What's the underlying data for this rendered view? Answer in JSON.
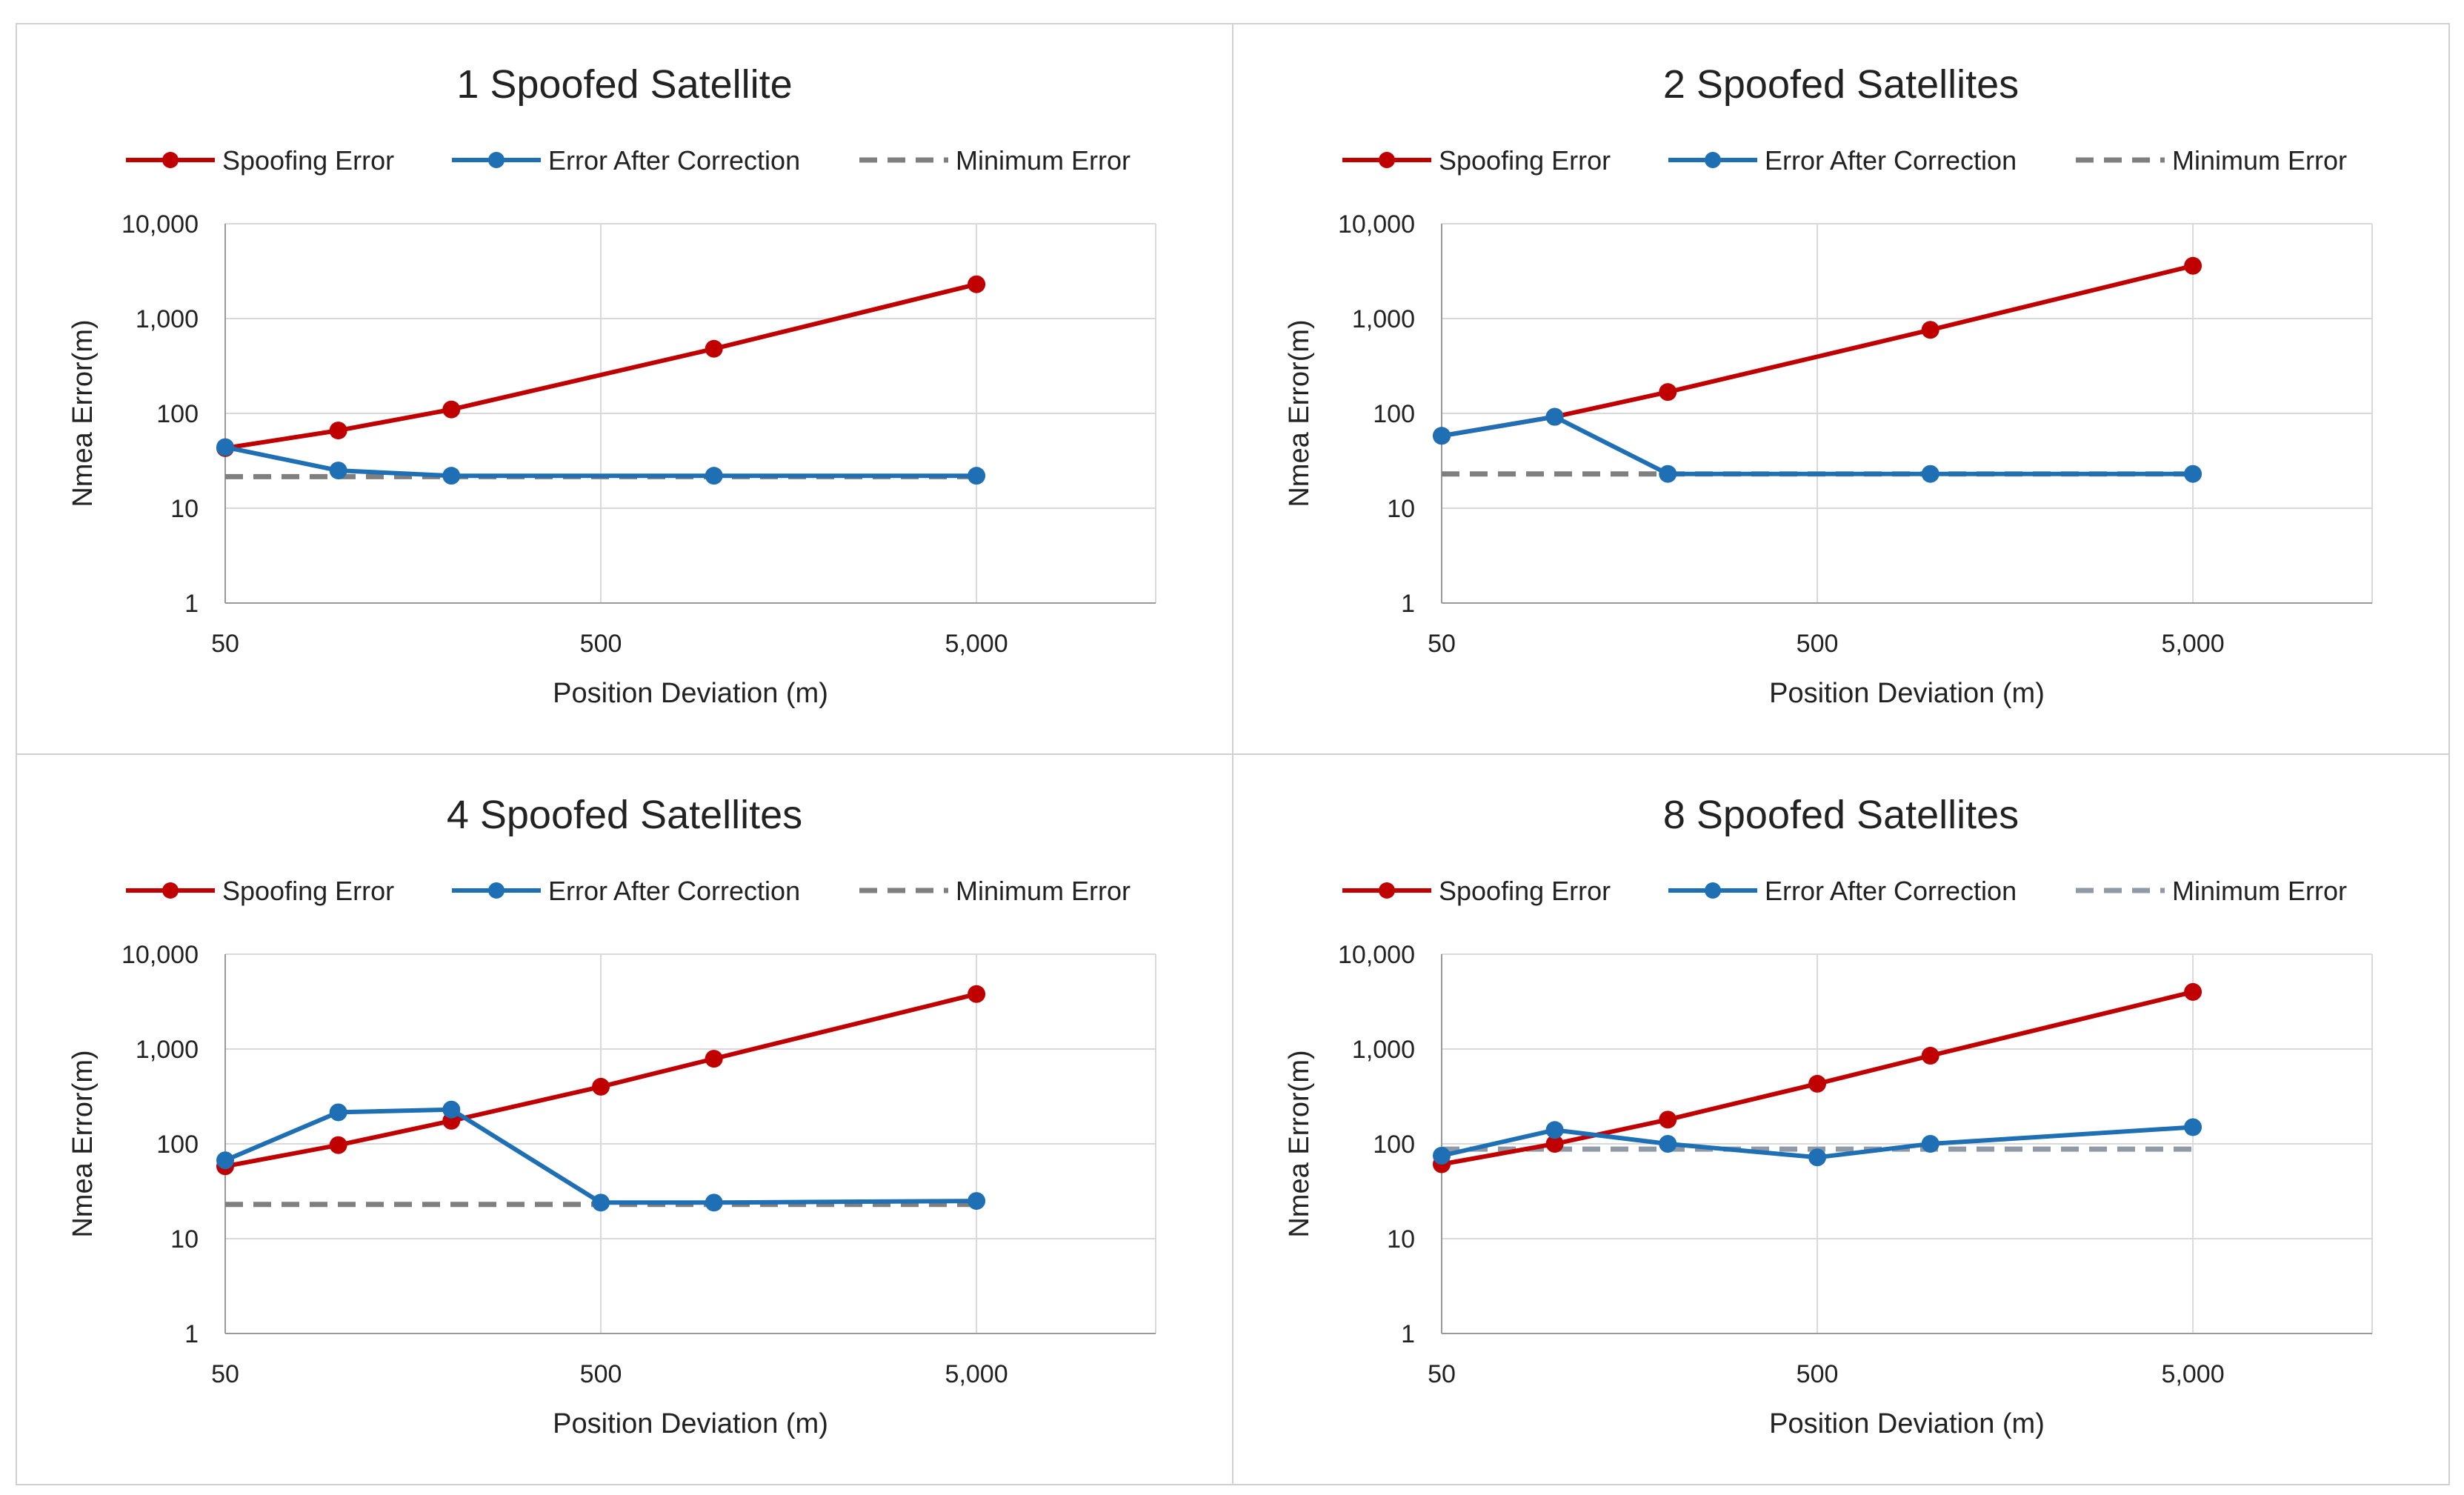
{
  "colors": {
    "spoofing": "#c00000",
    "corrected": "#1f6fb5",
    "minimum_a": "#7f7f7f",
    "minimum_b": "#8f9aa6",
    "grid": "#d9d9d9",
    "axis": "#999999",
    "panel_border": "#d0d0d0"
  },
  "chart_data": [
    {
      "type": "line",
      "title": "1 Spoofed Satellite",
      "xlabel": "Position Deviation (m)",
      "ylabel": "Nmea Error(m)",
      "xscale": "log",
      "yscale": "log",
      "xlim": [
        50,
        15000
      ],
      "ylim": [
        1,
        10000
      ],
      "x_ticks": [
        50,
        500,
        5000
      ],
      "x_tick_labels": [
        "50",
        "500",
        "5,000"
      ],
      "y_ticks": [
        1,
        10,
        100,
        1000,
        10000
      ],
      "y_tick_labels": [
        "1",
        "10",
        "100",
        "1,000",
        "10,000"
      ],
      "legend": "top",
      "series": [
        {
          "name": "Spoofing Error",
          "style": "solid-marker",
          "color_key": "spoofing",
          "x": [
            50,
            100,
            200,
            1000,
            5000
          ],
          "y": [
            43,
            66,
            110,
            480,
            2300
          ]
        },
        {
          "name": "Error After Correction",
          "style": "solid-marker",
          "color_key": "corrected",
          "x": [
            50,
            100,
            200,
            1000,
            5000
          ],
          "y": [
            44,
            25,
            22,
            22,
            22
          ]
        },
        {
          "name": "Minimum Error",
          "style": "dashed",
          "color_key": "minimum_a",
          "x": [
            50,
            5000
          ],
          "y": [
            21.5,
            21.5
          ]
        }
      ]
    },
    {
      "type": "line",
      "title": "2 Spoofed Satellites",
      "xlabel": "Position Deviation (m)",
      "ylabel": "Nmea Error(m)",
      "xscale": "log",
      "yscale": "log",
      "xlim": [
        50,
        15000
      ],
      "ylim": [
        1,
        10000
      ],
      "x_ticks": [
        50,
        500,
        5000
      ],
      "x_tick_labels": [
        "50",
        "500",
        "5,000"
      ],
      "y_ticks": [
        1,
        10,
        100,
        1000,
        10000
      ],
      "y_tick_labels": [
        "1",
        "10",
        "100",
        "1,000",
        "10,000"
      ],
      "legend": "top",
      "series": [
        {
          "name": "Spoofing Error",
          "style": "solid-marker",
          "color_key": "spoofing",
          "x": [
            50,
            100,
            200,
            1000,
            5000
          ],
          "y": [
            58,
            92,
            168,
            760,
            3600
          ]
        },
        {
          "name": "Error After Correction",
          "style": "solid-marker",
          "color_key": "corrected",
          "x": [
            50,
            100,
            200,
            1000,
            5000
          ],
          "y": [
            58,
            92,
            23,
            23,
            23
          ]
        },
        {
          "name": "Minimum Error",
          "style": "dashed",
          "color_key": "minimum_a",
          "x": [
            50,
            5000
          ],
          "y": [
            23,
            23
          ]
        }
      ]
    },
    {
      "type": "line",
      "title": "4 Spoofed Satellites",
      "xlabel": "Position Deviation (m)",
      "ylabel": "Nmea Error(m)",
      "xscale": "log",
      "yscale": "log",
      "xlim": [
        50,
        15000
      ],
      "ylim": [
        1,
        10000
      ],
      "x_ticks": [
        50,
        500,
        5000
      ],
      "x_tick_labels": [
        "50",
        "500",
        "5,000"
      ],
      "y_ticks": [
        1,
        10,
        100,
        1000,
        10000
      ],
      "y_tick_labels": [
        "1",
        "10",
        "100",
        "1,000",
        "10,000"
      ],
      "legend": "top",
      "series": [
        {
          "name": "Spoofing Error",
          "style": "solid-marker",
          "color_key": "spoofing",
          "x": [
            50,
            100,
            200,
            500,
            1000,
            5000
          ],
          "y": [
            58,
            97,
            175,
            400,
            790,
            3800
          ]
        },
        {
          "name": "Error After Correction",
          "style": "solid-marker",
          "color_key": "corrected",
          "x": [
            50,
            100,
            200,
            500,
            1000,
            5000
          ],
          "y": [
            67,
            215,
            230,
            24,
            24,
            25
          ]
        },
        {
          "name": "Minimum Error",
          "style": "dashed",
          "color_key": "minimum_a",
          "x": [
            50,
            5000
          ],
          "y": [
            23,
            23
          ]
        }
      ]
    },
    {
      "type": "line",
      "title": "8 Spoofed Satellites",
      "xlabel": "Position Deviation (m)",
      "ylabel": "Nmea Error(m)",
      "xscale": "log",
      "yscale": "log",
      "xlim": [
        50,
        15000
      ],
      "ylim": [
        1,
        10000
      ],
      "x_ticks": [
        50,
        500,
        5000
      ],
      "x_tick_labels": [
        "50",
        "500",
        "5,000"
      ],
      "y_ticks": [
        1,
        10,
        100,
        1000,
        10000
      ],
      "y_tick_labels": [
        "1",
        "10",
        "100",
        "1,000",
        "10,000"
      ],
      "legend": "top",
      "series": [
        {
          "name": "Spoofing Error",
          "style": "solid-marker",
          "color_key": "spoofing",
          "x": [
            50,
            100,
            200,
            500,
            1000,
            5000
          ],
          "y": [
            61,
            100,
            180,
            430,
            850,
            4000
          ]
        },
        {
          "name": "Error After Correction",
          "style": "solid-marker",
          "color_key": "corrected",
          "x": [
            50,
            100,
            200,
            500,
            1000,
            5000
          ],
          "y": [
            75,
            140,
            100,
            72,
            100,
            150
          ]
        },
        {
          "name": "Minimum Error",
          "style": "dashed",
          "color_key": "minimum_b",
          "x": [
            50,
            5000
          ],
          "y": [
            88,
            88
          ]
        }
      ]
    }
  ]
}
